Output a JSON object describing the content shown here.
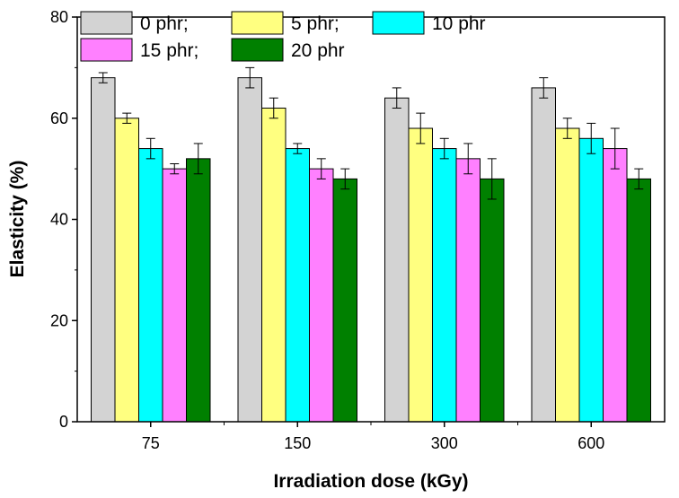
{
  "chart_data": {
    "type": "bar",
    "title": "",
    "xlabel": "Irradiation dose (kGy)",
    "ylabel": "Elasticity (%)",
    "categories": [
      "75",
      "150",
      "300",
      "600"
    ],
    "ylim": [
      0,
      80
    ],
    "yticks": [
      "0",
      "20",
      "40",
      "60",
      "80"
    ],
    "grid": false,
    "legend_position": "top-left",
    "series": [
      {
        "name": "0 phr;",
        "color": "#d3d3d3",
        "values": [
          68,
          68,
          64,
          66
        ],
        "errors": [
          1,
          2,
          2,
          2
        ]
      },
      {
        "name": "5 phr;",
        "color": "#ffff80",
        "values": [
          60,
          62,
          58,
          58
        ],
        "errors": [
          1,
          2,
          3,
          2
        ]
      },
      {
        "name": "10 phr",
        "color": "#00ffff",
        "values": [
          54,
          54,
          54,
          56
        ],
        "errors": [
          2,
          1,
          2,
          3
        ]
      },
      {
        "name": "15 phr;",
        "color": "#ff80ff",
        "values": [
          50,
          50,
          52,
          54
        ],
        "errors": [
          1,
          2,
          3,
          4
        ]
      },
      {
        "name": "20 phr",
        "color": "#008000",
        "values": [
          52,
          48,
          48,
          48
        ],
        "errors": [
          3,
          2,
          4,
          2
        ]
      }
    ]
  }
}
